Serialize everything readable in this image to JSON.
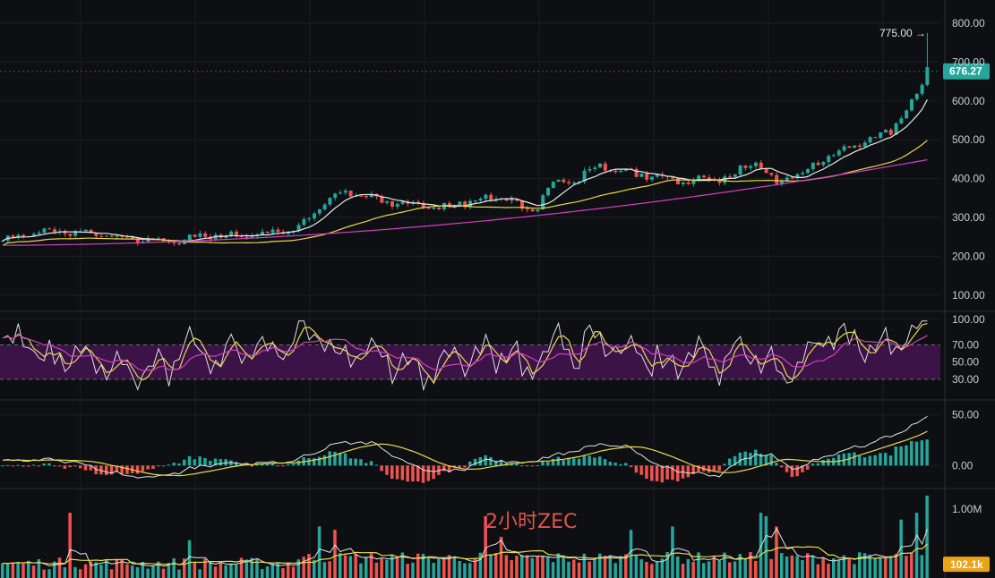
{
  "chart_data": [
    {
      "panel": "price",
      "type": "candlestick",
      "overlay_title": "2小时ZEC",
      "y_ticks": [
        100,
        200,
        300,
        400,
        500,
        600,
        700,
        800
      ],
      "y_tick_labels": [
        "100.00",
        "200.00",
        "300.00",
        "400.00",
        "500.00",
        "600.00",
        "700.00",
        "800.00"
      ],
      "ylim": [
        65,
        860
      ],
      "max_annotation": {
        "label": "775.00 →",
        "value": 775
      },
      "last_price": {
        "label": "676.27",
        "value": 676.27
      },
      "close_profile": [
        [
          0,
          240
        ],
        [
          40,
          262
        ],
        [
          75,
          262
        ],
        [
          100,
          260
        ],
        [
          130,
          248
        ],
        [
          160,
          240
        ],
        [
          195,
          238
        ],
        [
          215,
          250
        ],
        [
          240,
          252
        ],
        [
          270,
          254
        ],
        [
          300,
          260
        ],
        [
          330,
          270
        ],
        [
          350,
          310
        ],
        [
          365,
          345
        ],
        [
          380,
          360
        ],
        [
          395,
          360
        ],
        [
          410,
          355
        ],
        [
          425,
          340
        ],
        [
          450,
          338
        ],
        [
          470,
          330
        ],
        [
          490,
          326
        ],
        [
          510,
          335
        ],
        [
          530,
          345
        ],
        [
          550,
          350
        ],
        [
          570,
          345
        ],
        [
          585,
          315
        ],
        [
          600,
          330
        ],
        [
          610,
          380
        ],
        [
          625,
          392
        ],
        [
          640,
          390
        ],
        [
          660,
          425
        ],
        [
          675,
          432
        ],
        [
          690,
          420
        ],
        [
          710,
          412
        ],
        [
          730,
          405
        ],
        [
          750,
          400
        ],
        [
          765,
          392
        ],
        [
          780,
          396
        ],
        [
          800,
          402
        ],
        [
          820,
          405
        ],
        [
          830,
          430
        ],
        [
          845,
          440
        ],
        [
          855,
          410
        ],
        [
          868,
          385
        ],
        [
          880,
          405
        ],
        [
          895,
          415
        ],
        [
          910,
          430
        ],
        [
          925,
          460
        ],
        [
          940,
          472
        ],
        [
          955,
          485
        ],
        [
          970,
          500
        ],
        [
          985,
          510
        ],
        [
          995,
          520
        ],
        [
          1005,
          560
        ],
        [
          1015,
          590
        ],
        [
          1025,
          615
        ],
        [
          1030,
          635
        ],
        [
          1033,
          690
        ],
        [
          1038,
          676
        ]
      ],
      "series": [
        {
          "name": "",
          "color": "#e8e8e8"
        },
        {
          "name": "",
          "color": "#e8d84a"
        },
        {
          "name": "",
          "color": "#d43fc3"
        }
      ],
      "up_color": "#26a69a",
      "down_color": "#ef5350"
    },
    {
      "panel": "rsi",
      "type": "line",
      "y_ticks": [
        30,
        50,
        70,
        100
      ],
      "y_tick_labels": [
        "30.00",
        "50.00",
        "70.00",
        "100.00"
      ],
      "ylim": [
        10,
        105
      ],
      "band": [
        30,
        70
      ],
      "band_color": "#3b1346",
      "profile": [
        [
          0,
          60
        ],
        [
          20,
          78
        ],
        [
          35,
          70
        ],
        [
          50,
          40
        ],
        [
          65,
          68
        ],
        [
          80,
          50
        ],
        [
          100,
          55
        ],
        [
          125,
          42
        ],
        [
          140,
          35
        ],
        [
          160,
          38
        ],
        [
          190,
          45
        ],
        [
          210,
          70
        ],
        [
          225,
          60
        ],
        [
          240,
          55
        ],
        [
          270,
          60
        ],
        [
          300,
          65
        ],
        [
          325,
          75
        ],
        [
          345,
          90
        ],
        [
          360,
          85
        ],
        [
          375,
          58
        ],
        [
          395,
          62
        ],
        [
          410,
          66
        ],
        [
          425,
          50
        ],
        [
          450,
          40
        ],
        [
          470,
          42
        ],
        [
          490,
          48
        ],
        [
          510,
          62
        ],
        [
          530,
          58
        ],
        [
          550,
          60
        ],
        [
          570,
          56
        ],
        [
          585,
          38
        ],
        [
          600,
          55
        ],
        [
          615,
          72
        ],
        [
          640,
          62
        ],
        [
          665,
          82
        ],
        [
          680,
          70
        ],
        [
          700,
          58
        ],
        [
          725,
          55
        ],
        [
          745,
          42
        ],
        [
          760,
          52
        ],
        [
          775,
          60
        ],
        [
          790,
          55
        ],
        [
          805,
          50
        ],
        [
          820,
          58
        ],
        [
          835,
          65
        ],
        [
          850,
          60
        ],
        [
          862,
          40
        ],
        [
          875,
          38
        ],
        [
          890,
          50
        ],
        [
          910,
          65
        ],
        [
          925,
          78
        ],
        [
          945,
          72
        ],
        [
          965,
          78
        ],
        [
          985,
          72
        ],
        [
          1000,
          78
        ],
        [
          1015,
          84
        ],
        [
          1030,
          88
        ],
        [
          1038,
          86
        ]
      ],
      "series": [
        {
          "name": "",
          "color": "#e0e0e0"
        },
        {
          "name": "",
          "color": "#e8d84a"
        },
        {
          "name": "",
          "color": "#d43fc3"
        }
      ]
    },
    {
      "panel": "macd",
      "type": "histogram+line",
      "y_ticks": [
        0,
        50
      ],
      "y_tick_labels": [
        "0.00",
        "50.00"
      ],
      "ylim": [
        -20,
        62
      ],
      "profile": [
        [
          0,
          4
        ],
        [
          40,
          6
        ],
        [
          80,
          4
        ],
        [
          110,
          -4
        ],
        [
          140,
          -10
        ],
        [
          170,
          -12
        ],
        [
          200,
          -6
        ],
        [
          230,
          0
        ],
        [
          260,
          2
        ],
        [
          300,
          3
        ],
        [
          330,
          5
        ],
        [
          350,
          12
        ],
        [
          375,
          22
        ],
        [
          400,
          24
        ],
        [
          420,
          20
        ],
        [
          440,
          10
        ],
        [
          460,
          0
        ],
        [
          480,
          -4
        ],
        [
          500,
          -6
        ],
        [
          520,
          -2
        ],
        [
          540,
          4
        ],
        [
          560,
          6
        ],
        [
          580,
          2
        ],
        [
          600,
          6
        ],
        [
          620,
          10
        ],
        [
          650,
          16
        ],
        [
          675,
          22
        ],
        [
          700,
          18
        ],
        [
          720,
          8
        ],
        [
          740,
          -2
        ],
        [
          760,
          -6
        ],
        [
          780,
          -8
        ],
        [
          800,
          -10
        ],
        [
          815,
          -2
        ],
        [
          830,
          6
        ],
        [
          845,
          12
        ],
        [
          860,
          10
        ],
        [
          875,
          2
        ],
        [
          890,
          -4
        ],
        [
          905,
          2
        ],
        [
          920,
          10
        ],
        [
          940,
          14
        ],
        [
          960,
          20
        ],
        [
          980,
          24
        ],
        [
          1000,
          30
        ],
        [
          1020,
          40
        ],
        [
          1038,
          49
        ]
      ],
      "series": [
        {
          "name": "",
          "color": "#e0e0e0"
        },
        {
          "name": "",
          "color": "#e8d84a"
        }
      ],
      "up_color": "#26a69a",
      "down_color": "#ef5350"
    },
    {
      "panel": "volume",
      "type": "bar",
      "y_tick_labels": [
        "1.00M"
      ],
      "ylim": [
        0,
        1.25
      ],
      "last_volume": {
        "label": "102.1k",
        "value": 0.102
      },
      "spikes": [
        [
          78,
          0.95
        ],
        [
          212,
          0.55
        ],
        [
          355,
          0.75
        ],
        [
          375,
          0.7
        ],
        [
          545,
          0.9
        ],
        [
          560,
          0.6
        ],
        [
          705,
          0.7
        ],
        [
          752,
          0.75
        ],
        [
          848,
          0.95
        ],
        [
          858,
          0.9
        ],
        [
          865,
          0.75
        ],
        [
          1005,
          0.85
        ],
        [
          1025,
          0.95
        ],
        [
          1033,
          1.2
        ]
      ],
      "series": [
        {
          "name": "",
          "color": "#e0e0e0"
        },
        {
          "name": "",
          "color": "#e8d84a"
        }
      ],
      "up_color": "#26a69a",
      "down_color": "#ef5350"
    }
  ],
  "ui": {
    "bg": "#0e0f12",
    "grid": "#1c1e24",
    "separator": "#2a2d35",
    "price_tag_color": "#26a69a",
    "volume_tag_color": "#e8a317"
  }
}
